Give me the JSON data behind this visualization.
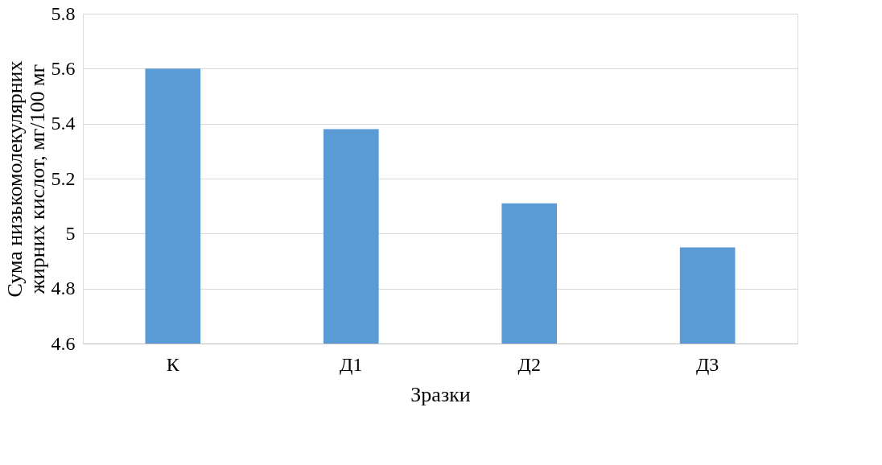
{
  "chart_data": {
    "type": "bar",
    "xlabel": "Зразки",
    "ylabel": "Сума низькомолекулярних жирних кислот, мг/100 мг",
    "categories": [
      "К",
      "Д1",
      "Д2",
      "Д3"
    ],
    "values": [
      5.6,
      5.38,
      5.11,
      4.95
    ],
    "color": "#5b9bd5",
    "ylim": [
      4.6,
      5.8
    ],
    "yticks": [
      4.6,
      4.8,
      5,
      5.2,
      5.4,
      5.6,
      5.8
    ],
    "grid": "y"
  }
}
